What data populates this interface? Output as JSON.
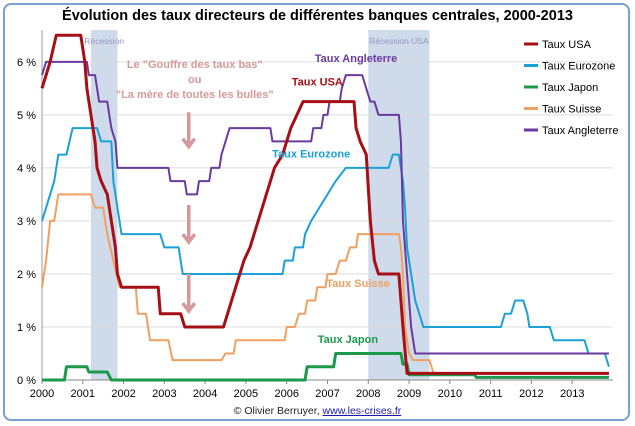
{
  "chart_data": {
    "type": "line",
    "title": "Évolution des taux directeurs de différentes banques centrales, 2000-2013",
    "xlim": [
      2000,
      2014
    ],
    "ylim": [
      0,
      6.6
    ],
    "x_ticks": [
      "2000",
      "2001",
      "2002",
      "2003",
      "2004",
      "2005",
      "2006",
      "2007",
      "2008",
      "2009",
      "2010",
      "2011",
      "2012",
      "2013"
    ],
    "y_ticks": [
      "0 %",
      "1 %",
      "2 %",
      "3 %",
      "4 %",
      "5 %",
      "6 %"
    ],
    "grid": "horizontal",
    "legend": "right",
    "recessions": [
      {
        "label": "Récession",
        "from": 2001.2,
        "to": 2001.85
      },
      {
        "label": "Récession USA",
        "from": 2008.0,
        "to": 2009.5
      }
    ],
    "series": [
      {
        "name": "Taux USA",
        "color": "#a50f15",
        "points": [
          [
            2000,
            5.5
          ],
          [
            2000.1,
            5.75
          ],
          [
            2000.2,
            6.0
          ],
          [
            2000.35,
            6.5
          ],
          [
            2000.95,
            6.5
          ],
          [
            2001.05,
            6.0
          ],
          [
            2001.1,
            5.5
          ],
          [
            2001.2,
            5.0
          ],
          [
            2001.3,
            4.5
          ],
          [
            2001.35,
            4.0
          ],
          [
            2001.45,
            3.75
          ],
          [
            2001.6,
            3.5
          ],
          [
            2001.7,
            3.0
          ],
          [
            2001.8,
            2.5
          ],
          [
            2001.85,
            2.0
          ],
          [
            2001.95,
            1.75
          ],
          [
            2002.85,
            1.75
          ],
          [
            2002.9,
            1.25
          ],
          [
            2003.4,
            1.25
          ],
          [
            2003.5,
            1.0
          ],
          [
            2004.45,
            1.0
          ],
          [
            2004.55,
            1.25
          ],
          [
            2004.65,
            1.5
          ],
          [
            2004.75,
            1.75
          ],
          [
            2004.85,
            2.0
          ],
          [
            2004.95,
            2.25
          ],
          [
            2005.1,
            2.5
          ],
          [
            2005.2,
            2.75
          ],
          [
            2005.3,
            3.0
          ],
          [
            2005.4,
            3.25
          ],
          [
            2005.5,
            3.5
          ],
          [
            2005.6,
            3.75
          ],
          [
            2005.7,
            4.0
          ],
          [
            2005.9,
            4.25
          ],
          [
            2006.0,
            4.5
          ],
          [
            2006.1,
            4.75
          ],
          [
            2006.25,
            5.0
          ],
          [
            2006.4,
            5.25
          ],
          [
            2007.65,
            5.25
          ],
          [
            2007.7,
            4.75
          ],
          [
            2007.8,
            4.5
          ],
          [
            2007.95,
            4.25
          ],
          [
            2008.05,
            3.0
          ],
          [
            2008.15,
            2.25
          ],
          [
            2008.25,
            2.0
          ],
          [
            2008.75,
            2.0
          ],
          [
            2008.8,
            1.5
          ],
          [
            2008.85,
            1.0
          ],
          [
            2008.95,
            0.125
          ],
          [
            2013.9,
            0.125
          ]
        ]
      },
      {
        "name": "Taux Eurozone",
        "color": "#1ba0d7",
        "points": [
          [
            2000,
            3.0
          ],
          [
            2000.1,
            3.25
          ],
          [
            2000.2,
            3.5
          ],
          [
            2000.3,
            3.75
          ],
          [
            2000.4,
            4.25
          ],
          [
            2000.6,
            4.25
          ],
          [
            2000.75,
            4.75
          ],
          [
            2001.35,
            4.75
          ],
          [
            2001.45,
            4.5
          ],
          [
            2001.7,
            4.5
          ],
          [
            2001.75,
            3.75
          ],
          [
            2001.85,
            3.25
          ],
          [
            2001.95,
            2.75
          ],
          [
            2002.9,
            2.75
          ],
          [
            2003.0,
            2.5
          ],
          [
            2003.35,
            2.5
          ],
          [
            2003.45,
            2.0
          ],
          [
            2005.9,
            2.0
          ],
          [
            2005.95,
            2.25
          ],
          [
            2006.15,
            2.25
          ],
          [
            2006.2,
            2.5
          ],
          [
            2006.4,
            2.5
          ],
          [
            2006.45,
            2.75
          ],
          [
            2006.6,
            3.0
          ],
          [
            2006.8,
            3.25
          ],
          [
            2007.0,
            3.5
          ],
          [
            2007.2,
            3.75
          ],
          [
            2007.45,
            4.0
          ],
          [
            2008.5,
            4.0
          ],
          [
            2008.6,
            4.25
          ],
          [
            2008.75,
            4.25
          ],
          [
            2008.85,
            3.75
          ],
          [
            2008.9,
            3.25
          ],
          [
            2008.95,
            2.5
          ],
          [
            2009.05,
            2.0
          ],
          [
            2009.15,
            1.5
          ],
          [
            2009.25,
            1.25
          ],
          [
            2009.35,
            1.0
          ],
          [
            2011.25,
            1.0
          ],
          [
            2011.35,
            1.25
          ],
          [
            2011.5,
            1.25
          ],
          [
            2011.6,
            1.5
          ],
          [
            2011.8,
            1.5
          ],
          [
            2011.9,
            1.25
          ],
          [
            2011.95,
            1.0
          ],
          [
            2012.45,
            1.0
          ],
          [
            2012.55,
            0.75
          ],
          [
            2013.3,
            0.75
          ],
          [
            2013.4,
            0.5
          ],
          [
            2013.8,
            0.5
          ],
          [
            2013.9,
            0.25
          ]
        ]
      },
      {
        "name": "Taux Japon",
        "color": "#1a9a4a",
        "points": [
          [
            2000,
            0
          ],
          [
            2000.55,
            0
          ],
          [
            2000.6,
            0.25
          ],
          [
            2001.1,
            0.25
          ],
          [
            2001.15,
            0.15
          ],
          [
            2001.6,
            0.15
          ],
          [
            2001.7,
            0
          ],
          [
            2006.45,
            0
          ],
          [
            2006.5,
            0.25
          ],
          [
            2007.15,
            0.25
          ],
          [
            2007.2,
            0.5
          ],
          [
            2008.8,
            0.5
          ],
          [
            2008.85,
            0.3
          ],
          [
            2008.95,
            0.3
          ],
          [
            2009.0,
            0.1
          ],
          [
            2010.6,
            0.1
          ],
          [
            2010.65,
            0.05
          ],
          [
            2013.9,
            0.05
          ]
        ]
      },
      {
        "name": "Taux Suisse",
        "color": "#f0a060",
        "points": [
          [
            2000,
            1.75
          ],
          [
            2000.1,
            2.25
          ],
          [
            2000.2,
            3.0
          ],
          [
            2000.3,
            3.0
          ],
          [
            2000.4,
            3.5
          ],
          [
            2001.2,
            3.5
          ],
          [
            2001.3,
            3.25
          ],
          [
            2001.5,
            3.25
          ],
          [
            2001.6,
            2.75
          ],
          [
            2001.75,
            2.25
          ],
          [
            2001.9,
            1.75
          ],
          [
            2002.3,
            1.75
          ],
          [
            2002.35,
            1.25
          ],
          [
            2002.55,
            1.25
          ],
          [
            2002.65,
            0.75
          ],
          [
            2003.1,
            0.75
          ],
          [
            2003.2,
            0.375
          ],
          [
            2004.4,
            0.375
          ],
          [
            2004.5,
            0.5
          ],
          [
            2004.7,
            0.5
          ],
          [
            2004.75,
            0.75
          ],
          [
            2005.95,
            0.75
          ],
          [
            2006.0,
            1.0
          ],
          [
            2006.2,
            1.0
          ],
          [
            2006.3,
            1.25
          ],
          [
            2006.45,
            1.25
          ],
          [
            2006.5,
            1.5
          ],
          [
            2006.7,
            1.5
          ],
          [
            2006.75,
            1.75
          ],
          [
            2006.95,
            1.75
          ],
          [
            2007.0,
            2.0
          ],
          [
            2007.2,
            2.0
          ],
          [
            2007.3,
            2.25
          ],
          [
            2007.45,
            2.25
          ],
          [
            2007.55,
            2.5
          ],
          [
            2007.7,
            2.5
          ],
          [
            2007.75,
            2.75
          ],
          [
            2008.75,
            2.75
          ],
          [
            2008.8,
            2.5
          ],
          [
            2008.85,
            2.0
          ],
          [
            2008.9,
            1.0
          ],
          [
            2009.0,
            0.5
          ],
          [
            2009.1,
            0.375
          ],
          [
            2009.5,
            0.375
          ],
          [
            2009.6,
            0.125
          ],
          [
            2013.9,
            0.125
          ]
        ]
      },
      {
        "name": "Taux Angleterre",
        "color": "#6a3aa0",
        "points": [
          [
            2000,
            5.75
          ],
          [
            2000.1,
            6.0
          ],
          [
            2001.1,
            6.0
          ],
          [
            2001.15,
            5.75
          ],
          [
            2001.3,
            5.75
          ],
          [
            2001.35,
            5.5
          ],
          [
            2001.4,
            5.25
          ],
          [
            2001.6,
            5.25
          ],
          [
            2001.7,
            4.75
          ],
          [
            2001.8,
            4.5
          ],
          [
            2001.85,
            4.0
          ],
          [
            2003.1,
            4.0
          ],
          [
            2003.15,
            3.75
          ],
          [
            2003.5,
            3.75
          ],
          [
            2003.55,
            3.5
          ],
          [
            2003.8,
            3.5
          ],
          [
            2003.85,
            3.75
          ],
          [
            2004.1,
            3.75
          ],
          [
            2004.15,
            4.0
          ],
          [
            2004.35,
            4.0
          ],
          [
            2004.4,
            4.25
          ],
          [
            2004.5,
            4.5
          ],
          [
            2004.6,
            4.75
          ],
          [
            2005.6,
            4.75
          ],
          [
            2005.65,
            4.5
          ],
          [
            2006.6,
            4.5
          ],
          [
            2006.65,
            4.75
          ],
          [
            2006.85,
            4.75
          ],
          [
            2006.9,
            5.0
          ],
          [
            2007.0,
            5.0
          ],
          [
            2007.05,
            5.25
          ],
          [
            2007.3,
            5.25
          ],
          [
            2007.35,
            5.5
          ],
          [
            2007.45,
            5.75
          ],
          [
            2007.85,
            5.75
          ],
          [
            2007.95,
            5.5
          ],
          [
            2008.05,
            5.25
          ],
          [
            2008.15,
            5.25
          ],
          [
            2008.25,
            5.0
          ],
          [
            2008.75,
            5.0
          ],
          [
            2008.8,
            4.5
          ],
          [
            2008.85,
            3.0
          ],
          [
            2008.95,
            2.0
          ],
          [
            2009.0,
            1.5
          ],
          [
            2009.05,
            1.0
          ],
          [
            2009.15,
            0.5
          ],
          [
            2013.9,
            0.5
          ]
        ]
      }
    ],
    "annotations": [
      {
        "text": "Taux Angleterre",
        "series": "Taux Angleterre",
        "x": 2007.7,
        "y": 6.0
      },
      {
        "text": "Taux USA",
        "series": "Taux USA",
        "x": 2006.75,
        "y": 5.55
      },
      {
        "text": "Taux Eurozone",
        "series": "Taux Eurozone",
        "x": 2006.6,
        "y": 4.2
      },
      {
        "text": "Taux Suisse",
        "series": "Taux Suisse",
        "x": 2007.75,
        "y": 1.75
      },
      {
        "text": "Taux Japon",
        "series": "Taux Japon",
        "x": 2007.5,
        "y": 0.7
      }
    ],
    "callout": {
      "lines": [
        "Le \"Gouffre des taux bas\"",
        "ou",
        "\"La mère de toutes les bulles\""
      ],
      "color": "#d4999a",
      "arrows_at_x": 2003.5,
      "arrows_y": [
        [
          5.05,
          4.4
        ],
        [
          3.3,
          2.6
        ],
        [
          2.0,
          1.3
        ]
      ]
    }
  },
  "footer": {
    "copyright": "© Olivier Berruyer, ",
    "link": "www.les-crises.fr"
  }
}
